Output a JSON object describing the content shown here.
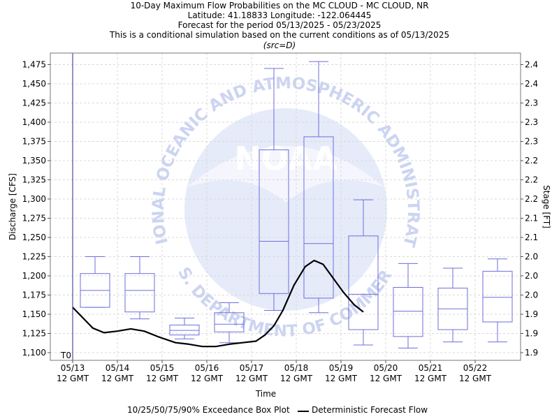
{
  "header": {
    "title": "10-Day Maximum Flow Probabilities on the MC CLOUD - MC CLOUD, NR",
    "location": "Latitude: 41.18833 Longitude: -122.064445",
    "period": "Forecast for the period 05/13/2025 - 05/23/2025",
    "conditional": "This is a conditional simulation based on the current conditions as of 05/13/2025",
    "src": "(src=D)"
  },
  "watermark": {
    "logo_text": "NOAA",
    "ring_text": "NATIONAL OCEANIC AND ATMOSPHERIC ADMINISTRATION",
    "bottom_text": "U.S. DEPARTMENT OF COMMERCE"
  },
  "chart_data": {
    "type": "box",
    "xlabel": "Time",
    "ylabel_left": "Discharge [CFS]",
    "ylabel_right": "Stage [FT]",
    "t0_label": "T0",
    "ylim": [
      1090,
      1490
    ],
    "grid": true,
    "x_tick_labels": [
      [
        "05/13",
        "12 GMT"
      ],
      [
        "05/14",
        "12 GMT"
      ],
      [
        "05/15",
        "12 GMT"
      ],
      [
        "05/16",
        "12 GMT"
      ],
      [
        "05/17",
        "12 GMT"
      ],
      [
        "05/18",
        "12 GMT"
      ],
      [
        "05/19",
        "12 GMT"
      ],
      [
        "05/20",
        "12 GMT"
      ],
      [
        "05/21",
        "12 GMT"
      ],
      [
        "05/22",
        "12 GMT"
      ]
    ],
    "y_ticks": [
      "1,100",
      "1,125",
      "1,150",
      "1,175",
      "1,200",
      "1,225",
      "1,250",
      "1,275",
      "1,300",
      "1,325",
      "1,350",
      "1,375",
      "1,400",
      "1,425",
      "1,450",
      "1,475"
    ],
    "right_ticks": [
      "1.9",
      "1.9",
      "1.9",
      "2.0",
      "2.0",
      "2.0",
      "2.1",
      "2.1",
      "2.2",
      "2.2",
      "2.2",
      "2.3",
      "2.3",
      "2.3",
      "2.4",
      "2.4"
    ],
    "boxes": [
      {
        "day": 0.5,
        "p10": 1159,
        "p25": 1159,
        "p50": 1181,
        "p75": 1203,
        "p90": 1225
      },
      {
        "day": 1.5,
        "p10": 1144,
        "p25": 1153,
        "p50": 1181,
        "p75": 1203,
        "p90": 1225
      },
      {
        "day": 2.5,
        "p10": 1118,
        "p25": 1123,
        "p50": 1129,
        "p75": 1136,
        "p90": 1145
      },
      {
        "day": 3.5,
        "p10": 1113,
        "p25": 1127,
        "p50": 1137,
        "p75": 1152,
        "p90": 1165
      },
      {
        "day": 4.5,
        "p10": 1155,
        "p25": 1177,
        "p50": 1245,
        "p75": 1364,
        "p90": 1470
      },
      {
        "day": 5.5,
        "p10": 1152,
        "p25": 1171,
        "p50": 1242,
        "p75": 1381,
        "p90": 1479
      },
      {
        "day": 6.5,
        "p10": 1110,
        "p25": 1130,
        "p50": 1176,
        "p75": 1252,
        "p90": 1299
      },
      {
        "day": 7.5,
        "p10": 1106,
        "p25": 1121,
        "p50": 1154,
        "p75": 1185,
        "p90": 1216
      },
      {
        "day": 8.5,
        "p10": 1114,
        "p25": 1130,
        "p50": 1157,
        "p75": 1184,
        "p90": 1210
      },
      {
        "day": 9.5,
        "p10": 1114,
        "p25": 1140,
        "p50": 1172,
        "p75": 1206,
        "p90": 1222
      }
    ],
    "deterministic": {
      "x": [
        0.0,
        0.2,
        0.45,
        0.7,
        1.0,
        1.3,
        1.6,
        1.9,
        2.1,
        2.3,
        2.6,
        2.9,
        3.2,
        3.5,
        3.8,
        4.1,
        4.3,
        4.5,
        4.7,
        4.95,
        5.2,
        5.4,
        5.6,
        5.8,
        6.05,
        6.3,
        6.5
      ],
      "y": [
        1159,
        1147,
        1132,
        1126,
        1128,
        1131,
        1128,
        1121,
        1117,
        1113,
        1111,
        1108,
        1108,
        1111,
        1113,
        1115,
        1123,
        1135,
        1155,
        1188,
        1212,
        1220,
        1215,
        1199,
        1179,
        1162,
        1153
      ]
    },
    "legend": {
      "box": "10/25/50/75/90% Exceedance Box Plot",
      "line": "Deterministic Forecast Flow"
    },
    "colors": {
      "box": "#6e6edc",
      "line": "#000000",
      "grid": "#d8d8d8",
      "t0": "#2a2a8c",
      "watermark": "#b8c4ee"
    }
  }
}
